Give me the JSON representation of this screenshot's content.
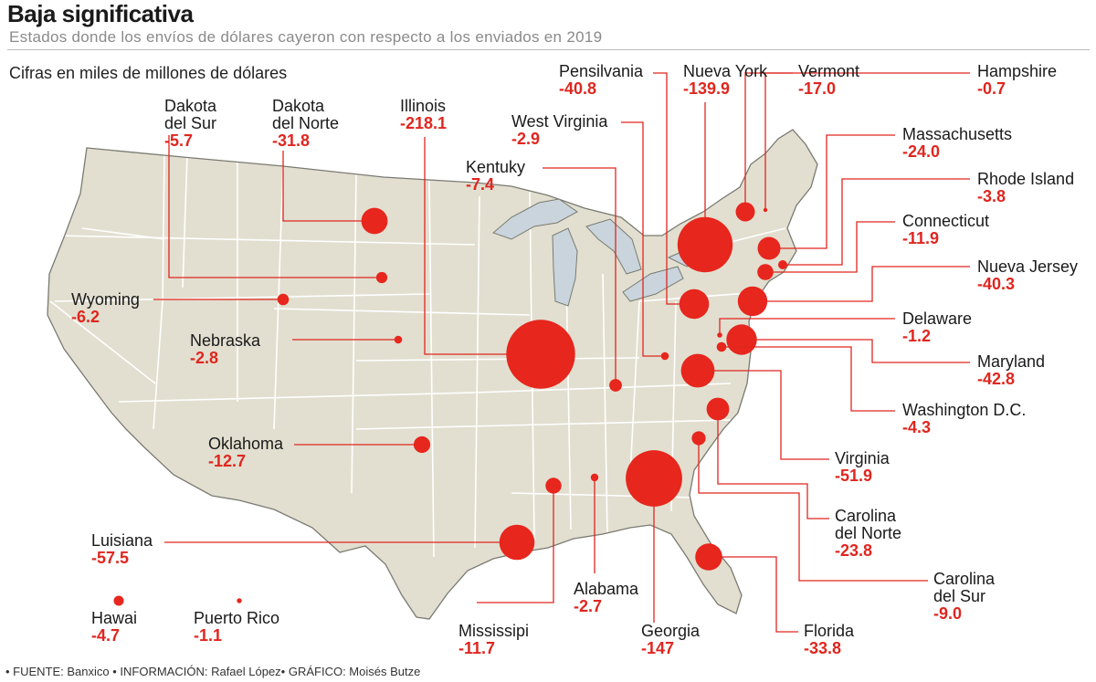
{
  "header": {
    "title": "Baja significativa",
    "subtitle": "Estados donde los envíos de dólares cayeron con respecto a los enviados en 2019",
    "unit_note": "Cifras en miles de millones de dólares"
  },
  "footer": {
    "source": "• FUENTE: Banxico • INFORMACIÓN: Rafael López• GRÁFICO: Moisés Butze"
  },
  "colors": {
    "land": "#e2dfd0",
    "border": "#ffffff",
    "outline": "#7a7a72",
    "lakes": "#c9d4dc",
    "bubble": "#e7261d",
    "leader": "#e0261f",
    "value_text": "#e0261f"
  },
  "states": [
    {
      "name": "Dakota del Sur",
      "value": "-5.7",
      "num": 5.7
    },
    {
      "name": "Dakota del Norte",
      "value": "-31.8",
      "num": 31.8
    },
    {
      "name": "Illinois",
      "value": "-218.1",
      "num": 218.1
    },
    {
      "name": "West Virginia",
      "value": "-2.9",
      "num": 2.9
    },
    {
      "name": "Kentuky",
      "value": "-7.4",
      "num": 7.4
    },
    {
      "name": "Pensilvania",
      "value": "-40.8",
      "num": 40.8
    },
    {
      "name": "Nueva York",
      "value": "-139.9",
      "num": 139.9
    },
    {
      "name": "Vermont",
      "value": "-17.0",
      "num": 17.0
    },
    {
      "name": "Hampshire",
      "value": "-0.7",
      "num": 0.7
    },
    {
      "name": "Massachusetts",
      "value": "-24.0",
      "num": 24.0
    },
    {
      "name": "Rhode Island",
      "value": "-3.8",
      "num": 3.8
    },
    {
      "name": "Connecticut",
      "value": "-11.9",
      "num": 11.9
    },
    {
      "name": "Nueva Jersey",
      "value": "-40.3",
      "num": 40.3
    },
    {
      "name": "Delaware",
      "value": "-1.2",
      "num": 1.2
    },
    {
      "name": "Maryland",
      "value": "-42.8",
      "num": 42.8
    },
    {
      "name": "Washington D.C.",
      "value": "-4.3",
      "num": 4.3
    },
    {
      "name": "Virginia",
      "value": "-51.9",
      "num": 51.9
    },
    {
      "name": "Carolina del Norte",
      "value": "-23.8",
      "num": 23.8
    },
    {
      "name": "Carolina del Sur",
      "value": "-9.0",
      "num": 9.0
    },
    {
      "name": "Florida",
      "value": "-33.8",
      "num": 33.8
    },
    {
      "name": "Georgia",
      "value": "-147",
      "num": 147
    },
    {
      "name": "Alabama",
      "value": "-2.7",
      "num": 2.7
    },
    {
      "name": "Mississipi",
      "value": "-11.7",
      "num": 11.7
    },
    {
      "name": "Luisiana",
      "value": "-57.5",
      "num": 57.5
    },
    {
      "name": "Oklahoma",
      "value": "-12.7",
      "num": 12.7
    },
    {
      "name": "Nebraska",
      "value": "-2.8",
      "num": 2.8
    },
    {
      "name": "Wyoming",
      "value": "-6.2",
      "num": 6.2
    },
    {
      "name": "Hawai",
      "value": "-4.7",
      "num": 4.7
    },
    {
      "name": "Puerto Rico",
      "value": "-1.1",
      "num": 1.1
    }
  ]
}
